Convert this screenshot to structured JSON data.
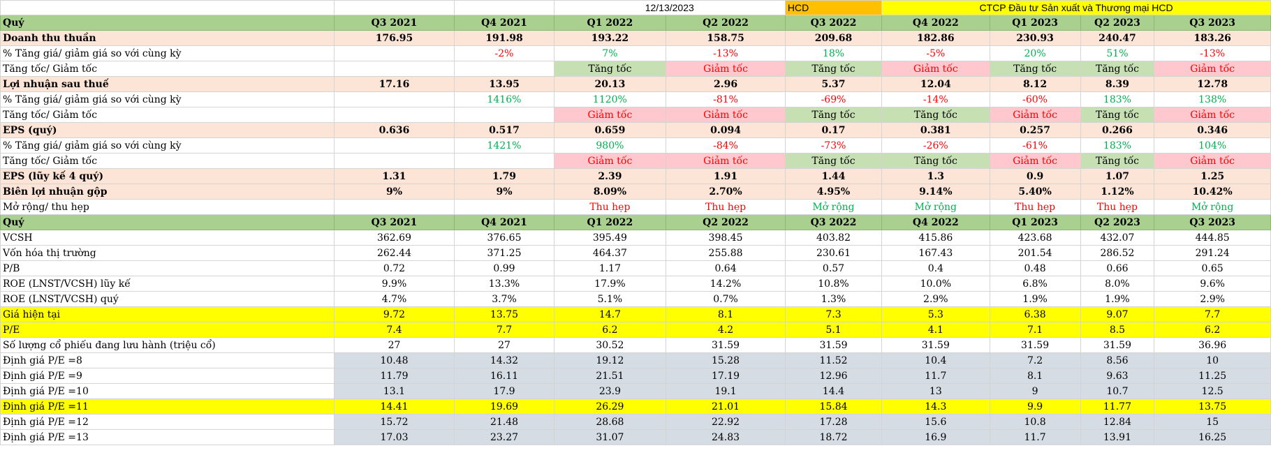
{
  "sheet": {
    "date": "12/13/2023",
    "ticker": "HCD",
    "company": "CTCP Đầu tư Sản xuất và Thương mại HCD",
    "header1": {
      "label": "Quý",
      "cols": [
        "Q3 2021",
        "Q4 2021",
        "Q1 2022",
        "Q2 2022",
        "Q3 2022",
        "Q4 2022",
        "Q1 2023",
        "Q2 2023",
        "Q3 2023"
      ]
    },
    "revenue": {
      "label": "Doanh thu thuần",
      "cols": [
        "176.95",
        "191.98",
        "193.22",
        "158.75",
        "209.68",
        "182.86",
        "230.93",
        "240.47",
        "183.26"
      ]
    },
    "revenue_yoy": {
      "label": "% Tăng giá/ giảm giá so với cùng kỳ",
      "cols": [
        "",
        "-2%",
        "7%",
        "-13%",
        "18%",
        "-5%",
        "20%",
        "51%",
        "-13%"
      ]
    },
    "revenue_trend": {
      "label": "Tăng tốc/ Giảm tốc",
      "cols": [
        "",
        "",
        "Tăng tốc",
        "Giảm tốc",
        "Tăng tốc",
        "Giảm tốc",
        "Tăng tốc",
        "Tăng tốc",
        "Giảm tốc"
      ]
    },
    "profit": {
      "label": "Lợi nhuận sau thuế",
      "cols": [
        "17.16",
        "13.95",
        "20.13",
        "2.96",
        "5.37",
        "12.04",
        "8.12",
        "8.39",
        "12.78"
      ]
    },
    "profit_yoy": {
      "label": "% Tăng giá/ giảm giá so với cùng kỳ",
      "cols": [
        "",
        "1416%",
        "1120%",
        "-81%",
        "-69%",
        "-14%",
        "-60%",
        "183%",
        "138%"
      ]
    },
    "profit_trend": {
      "label": "Tăng tốc/ Giảm tốc",
      "cols": [
        "",
        "",
        "Giảm tốc",
        "Giảm tốc",
        "Tăng tốc",
        "Tăng tốc",
        "Giảm tốc",
        "Tăng tốc",
        "Giảm tốc"
      ]
    },
    "eps": {
      "label": "EPS (quý)",
      "cols": [
        "0.636",
        "0.517",
        "0.659",
        "0.094",
        "0.17",
        "0.381",
        "0.257",
        "0.266",
        "0.346"
      ]
    },
    "eps_yoy": {
      "label": "% Tăng giá/ giảm giá so với cùng kỳ",
      "cols": [
        "",
        "1421%",
        "980%",
        "-84%",
        "-73%",
        "-26%",
        "-61%",
        "183%",
        "104%"
      ]
    },
    "eps_trend": {
      "label": "Tăng tốc/ Giảm tốc",
      "cols": [
        "",
        "",
        "Giảm tốc",
        "Giảm tốc",
        "Tăng tốc",
        "Tăng tốc",
        "Giảm tốc",
        "Tăng tốc",
        "Giảm tốc"
      ]
    },
    "eps_ttm": {
      "label": "EPS (lũy kế 4 quý)",
      "cols": [
        "1.31",
        "1.79",
        "2.39",
        "1.91",
        "1.44",
        "1.3",
        "0.9",
        "1.07",
        "1.25"
      ]
    },
    "gross_margin": {
      "label": "Biên lợi nhuận gộp",
      "cols": [
        "9%",
        "9%",
        "8.09%",
        "2.70%",
        "4.95%",
        "9.14%",
        "5.40%",
        "1.12%",
        "10.42%"
      ]
    },
    "margin_trend": {
      "label": "Mở rộng/ thu hẹp",
      "cols": [
        "",
        "",
        "Thu hẹp",
        "Thu hẹp",
        "Mở rộng",
        "Mở rộng",
        "Thu hẹp",
        "Thu hẹp",
        "Mở rộng"
      ]
    },
    "header2": {
      "label": "Quý",
      "cols": [
        "Q3 2021",
        "Q4 2021",
        "Q1 2022",
        "Q2 2022",
        "Q3 2022",
        "Q4 2022",
        "Q1 2023",
        "Q2 2023",
        "Q3 2023"
      ]
    },
    "equity": {
      "label": "VCSH",
      "cols": [
        "362.69",
        "376.65",
        "395.49",
        "398.45",
        "403.82",
        "415.86",
        "423.68",
        "432.07",
        "444.85"
      ]
    },
    "market_cap": {
      "label": "Vốn hóa thị trường",
      "cols": [
        "262.44",
        "371.25",
        "464.37",
        "255.88",
        "230.61",
        "167.43",
        "201.54",
        "286.52",
        "291.24"
      ]
    },
    "pb": {
      "label": "P/B",
      "cols": [
        "0.72",
        "0.99",
        "1.17",
        "0.64",
        "0.57",
        "0.4",
        "0.48",
        "0.66",
        "0.65"
      ]
    },
    "roe_ttm": {
      "label": "ROE (LNST/VCSH) lũy kế",
      "cols": [
        "9.9%",
        "13.3%",
        "17.9%",
        "14.2%",
        "10.8%",
        "10.0%",
        "6.8%",
        "8.0%",
        "9.6%"
      ]
    },
    "roe_q": {
      "label": "ROE (LNST/VCSH) quý",
      "cols": [
        "4.7%",
        "3.7%",
        "5.1%",
        "0.7%",
        "1.3%",
        "2.9%",
        "1.9%",
        "1.9%",
        "2.9%"
      ]
    },
    "price": {
      "label": "Giá hiện tại",
      "cols": [
        "9.72",
        "13.75",
        "14.7",
        "8.1",
        "7.3",
        "5.3",
        "6.38",
        "9.07",
        "7.7"
      ]
    },
    "pe": {
      "label": "P/E",
      "cols": [
        "7.4",
        "7.7",
        "6.2",
        "4.2",
        "5.1",
        "4.1",
        "7.1",
        "8.5",
        "6.2"
      ]
    },
    "shares": {
      "label": "Số lượng cổ phiếu đang lưu hành (triệu cổ)",
      "cols": [
        "27",
        "27",
        "30.52",
        "31.59",
        "31.59",
        "31.59",
        "31.59",
        "31.59",
        "36.96"
      ]
    },
    "val8": {
      "label": "Định giá P/E =8",
      "cols": [
        "10.48",
        "14.32",
        "19.12",
        "15.28",
        "11.52",
        "10.4",
        "7.2",
        "8.56",
        "10"
      ]
    },
    "val9": {
      "label": "Định giá P/E =9",
      "cols": [
        "11.79",
        "16.11",
        "21.51",
        "17.19",
        "12.96",
        "11.7",
        "8.1",
        "9.63",
        "11.25"
      ]
    },
    "val10": {
      "label": "Định giá P/E =10",
      "cols": [
        "13.1",
        "17.9",
        "23.9",
        "19.1",
        "14.4",
        "13",
        "9",
        "10.7",
        "12.5"
      ]
    },
    "val11": {
      "label": "Định giá P/E =11",
      "cols": [
        "14.41",
        "19.69",
        "26.29",
        "21.01",
        "15.84",
        "14.3",
        "9.9",
        "11.77",
        "13.75"
      ]
    },
    "val12": {
      "label": "Định giá P/E =12",
      "cols": [
        "15.72",
        "21.48",
        "28.68",
        "22.92",
        "17.28",
        "15.6",
        "10.8",
        "12.84",
        "15"
      ]
    },
    "val13": {
      "label": "Định giá P/E =13",
      "cols": [
        "17.03",
        "23.27",
        "31.07",
        "24.83",
        "18.72",
        "16.9",
        "11.7",
        "13.91",
        "16.25"
      ]
    }
  },
  "colors": {
    "header": "#a9d08e",
    "key_row": "#fce4d6",
    "highlight": "#ffff00",
    "valuation": "#d6dce4",
    "accel": "#c6e0b4",
    "decel": "#ffc7ce",
    "up_text": "#00b050",
    "down_text": "#ff0000",
    "ticker_bg": "#ffc000"
  }
}
